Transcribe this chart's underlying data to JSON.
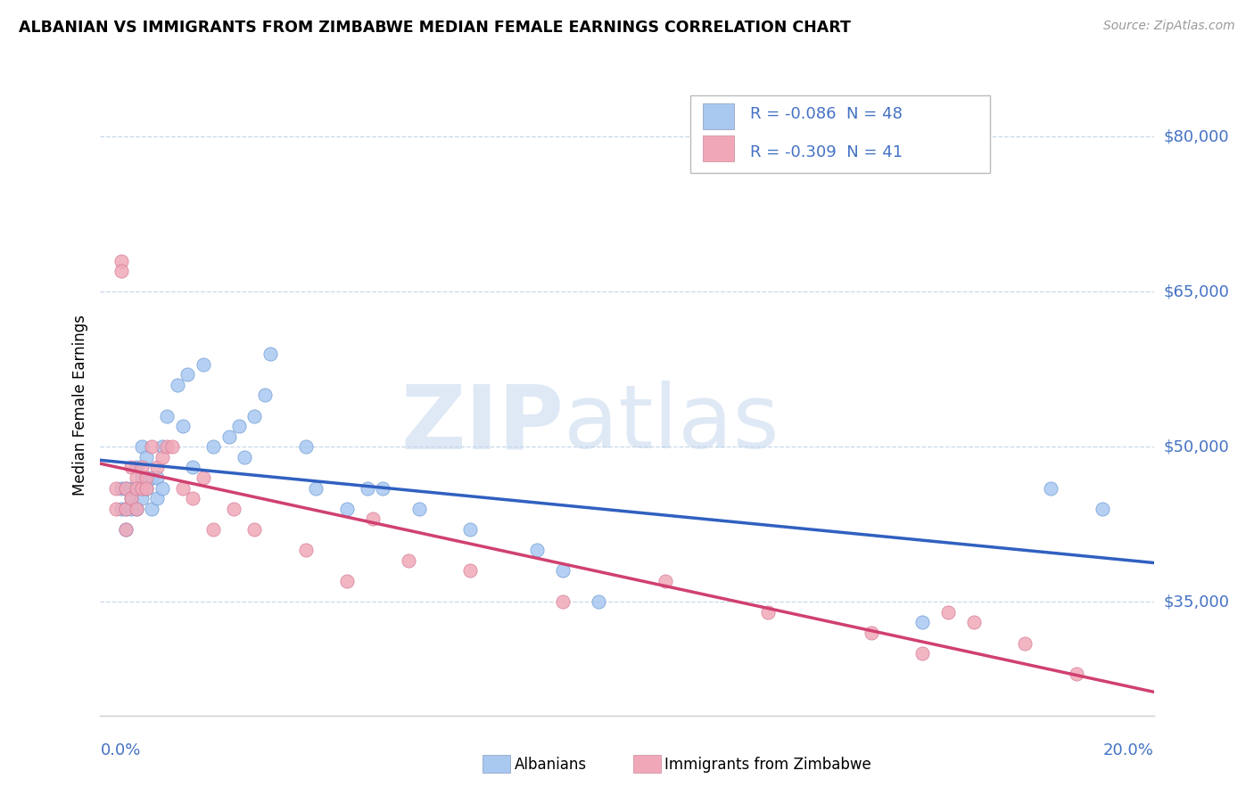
{
  "title": "ALBANIAN VS IMMIGRANTS FROM ZIMBABWE MEDIAN FEMALE EARNINGS CORRELATION CHART",
  "source": "Source: ZipAtlas.com",
  "ylabel": "Median Female Earnings",
  "legend1_r": "-0.086",
  "legend1_n": "48",
  "legend2_r": "-0.309",
  "legend2_n": "41",
  "color_albanian": "#A8C8F0",
  "color_zimbabwe": "#F0A8B8",
  "line_color_albanian": "#3060C0",
  "line_color_zimbabwe": "#D04070",
  "tick_color": "#4472C4",
  "grid_color": "#C8D8E8",
  "xlim": [
    0.0,
    0.205
  ],
  "ylim": [
    24000,
    84000
  ],
  "ytick_vals": [
    35000,
    50000,
    65000,
    80000
  ],
  "ytick_labels": [
    "$35,000",
    "$50,000",
    "$65,000",
    "$80,000"
  ],
  "albanian_x": [
    0.004,
    0.004,
    0.005,
    0.005,
    0.005,
    0.006,
    0.006,
    0.006,
    0.007,
    0.007,
    0.007,
    0.008,
    0.008,
    0.008,
    0.009,
    0.009,
    0.01,
    0.01,
    0.011,
    0.011,
    0.012,
    0.012,
    0.013,
    0.015,
    0.016,
    0.017,
    0.018,
    0.02,
    0.022,
    0.025,
    0.027,
    0.028,
    0.03,
    0.032,
    0.033,
    0.04,
    0.042,
    0.048,
    0.052,
    0.055,
    0.062,
    0.072,
    0.085,
    0.09,
    0.097,
    0.16,
    0.185,
    0.195
  ],
  "albanian_y": [
    46000,
    44000,
    46000,
    44000,
    42000,
    46000,
    45000,
    44000,
    48000,
    46000,
    44000,
    50000,
    47000,
    45000,
    49000,
    46000,
    47000,
    44000,
    47000,
    45000,
    50000,
    46000,
    53000,
    56000,
    52000,
    57000,
    48000,
    58000,
    50000,
    51000,
    52000,
    49000,
    53000,
    55000,
    59000,
    50000,
    46000,
    44000,
    46000,
    46000,
    44000,
    42000,
    40000,
    38000,
    35000,
    33000,
    46000,
    44000
  ],
  "zimbabwe_x": [
    0.003,
    0.003,
    0.004,
    0.004,
    0.005,
    0.005,
    0.005,
    0.006,
    0.006,
    0.007,
    0.007,
    0.007,
    0.008,
    0.008,
    0.009,
    0.009,
    0.01,
    0.011,
    0.012,
    0.013,
    0.014,
    0.016,
    0.018,
    0.02,
    0.022,
    0.026,
    0.03,
    0.04,
    0.048,
    0.053,
    0.06,
    0.072,
    0.09,
    0.11,
    0.13,
    0.15,
    0.16,
    0.165,
    0.17,
    0.18,
    0.19
  ],
  "zimbabwe_y": [
    46000,
    44000,
    68000,
    67000,
    46000,
    44000,
    42000,
    48000,
    45000,
    47000,
    46000,
    44000,
    48000,
    46000,
    47000,
    46000,
    50000,
    48000,
    49000,
    50000,
    50000,
    46000,
    45000,
    47000,
    42000,
    44000,
    42000,
    40000,
    37000,
    43000,
    39000,
    38000,
    35000,
    37000,
    34000,
    32000,
    30000,
    34000,
    33000,
    31000,
    28000
  ]
}
